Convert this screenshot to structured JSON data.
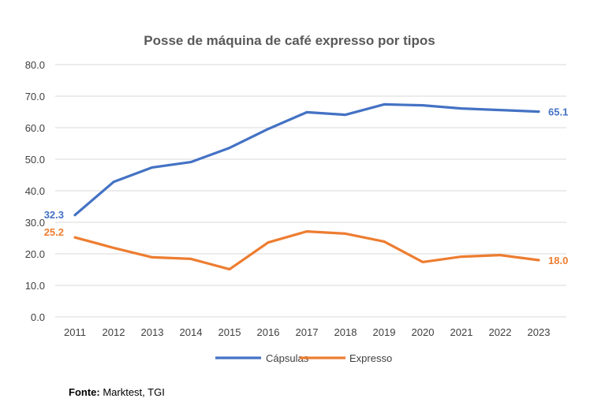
{
  "chart_data": {
    "type": "line",
    "title": "Posse de máquina de café expresso por tipos",
    "xlabel": "",
    "ylabel": "",
    "ylim": [
      0,
      80
    ],
    "yticks": [
      "0.0",
      "10.0",
      "20.0",
      "30.0",
      "40.0",
      "50.0",
      "60.0",
      "70.0",
      "80.0"
    ],
    "ytick_values": [
      0,
      10,
      20,
      30,
      40,
      50,
      60,
      70,
      80
    ],
    "grid": true,
    "legend_position": "bottom",
    "categories": [
      "2011",
      "2012",
      "2013",
      "2014",
      "2015",
      "2016",
      "2017",
      "2018",
      "2019",
      "2020",
      "2021",
      "2022",
      "2023"
    ],
    "series": [
      {
        "name": "Cápsulas",
        "color": "#4472C4",
        "values": [
          32.3,
          42.8,
          47.4,
          49.1,
          53.6,
          59.6,
          64.9,
          64.1,
          67.4,
          67.1,
          66.1,
          65.6,
          65.1
        ],
        "start_label": "32.3",
        "end_label": "65.1"
      },
      {
        "name": "Expresso",
        "color": "#ED7D31",
        "values": [
          25.2,
          21.9,
          18.9,
          18.4,
          15.1,
          23.6,
          27.1,
          26.4,
          23.9,
          17.4,
          19.1,
          19.6,
          18.0
        ],
        "start_label": "25.2",
        "end_label": "18.0"
      }
    ]
  },
  "source": {
    "label": "Fonte:",
    "text": " Marktest, TGI"
  }
}
